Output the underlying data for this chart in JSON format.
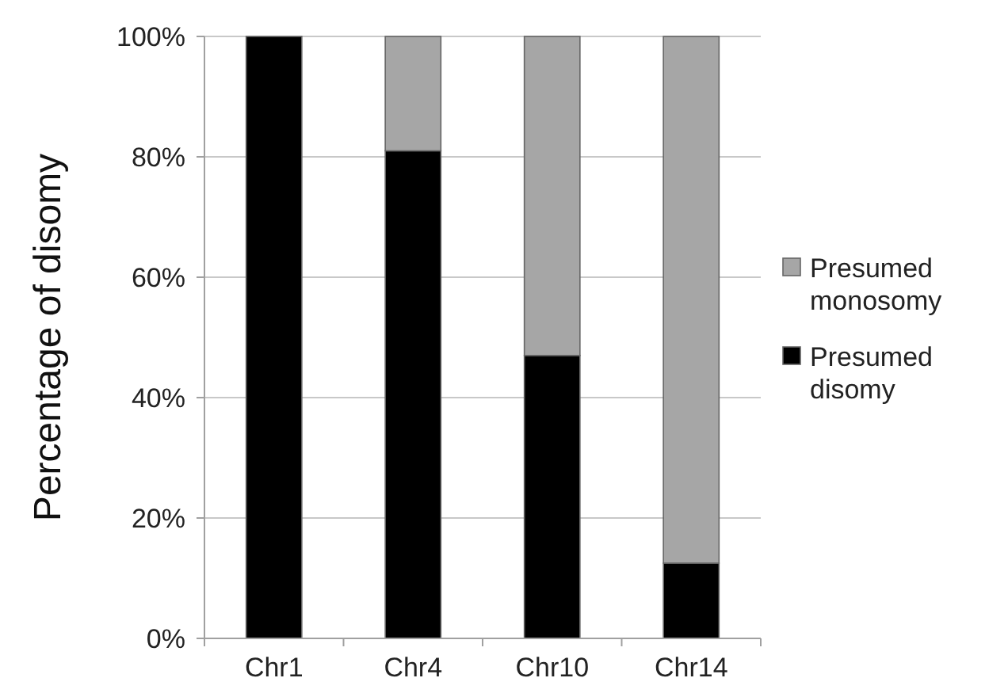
{
  "chart_data": {
    "type": "bar",
    "stacked": true,
    "ylabel": "Percentage of disomy",
    "categories": [
      "Chr1",
      "Chr4",
      "Chr10",
      "Chr14"
    ],
    "series": [
      {
        "name": "Presumed disomy",
        "color": "#000000",
        "values": [
          100,
          81,
          47,
          12.5
        ]
      },
      {
        "name": "Presumed monosomy",
        "color": "#a6a6a6",
        "values": [
          0,
          19,
          53,
          87.5
        ]
      }
    ],
    "ylim": [
      0,
      100
    ],
    "yticks": [
      {
        "value": 0,
        "label": "0%"
      },
      {
        "value": 20,
        "label": "20%"
      },
      {
        "value": 40,
        "label": "40%"
      },
      {
        "value": 60,
        "label": "60%"
      },
      {
        "value": 80,
        "label": "80%"
      },
      {
        "value": 100,
        "label": "100%"
      }
    ],
    "grid": "y",
    "legend": "right"
  }
}
